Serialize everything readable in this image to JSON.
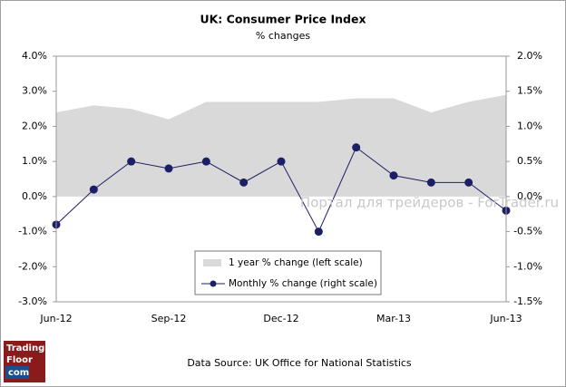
{
  "chart_data": {
    "type": "combo",
    "title": "UK: Consumer Price Index",
    "subtitle": "% changes",
    "categories": [
      "Jun-12",
      null,
      null,
      "Sep-12",
      null,
      null,
      "Dec-12",
      null,
      null,
      "Mar-13",
      null,
      null,
      "Jun-13"
    ],
    "series": [
      {
        "name": "1 year % change (left scale)",
        "kind": "area",
        "axis": "y",
        "color": "#d9d9d9",
        "values": [
          2.4,
          2.6,
          2.5,
          2.2,
          2.7,
          2.7,
          2.7,
          2.7,
          2.8,
          2.8,
          2.4,
          2.7,
          2.9
        ]
      },
      {
        "name": "Monthly % change (right scale)",
        "kind": "line",
        "axis": "y2",
        "color": "#1c1f66",
        "values": [
          -0.4,
          0.1,
          0.5,
          0.4,
          0.5,
          0.2,
          0.5,
          -0.5,
          0.7,
          0.3,
          0.2,
          0.2,
          -0.2
        ]
      }
    ],
    "ylim": [
      -3,
      4
    ],
    "yticks": [
      {
        "value": 4,
        "label": "4.0%"
      },
      {
        "value": 3,
        "label": "3.0%"
      },
      {
        "value": 2,
        "label": "2.0%"
      },
      {
        "value": 1,
        "label": "1.0%"
      },
      {
        "value": 0,
        "label": "0.0%"
      },
      {
        "value": -1,
        "label": "-1.0%"
      },
      {
        "value": -2,
        "label": "-2.0%"
      },
      {
        "value": -3,
        "label": "-3.0%"
      }
    ],
    "y2lim": [
      -1.5,
      2
    ],
    "y2ticks": [
      {
        "value": 2,
        "label": "2.0%"
      },
      {
        "value": 1.5,
        "label": "1.5%"
      },
      {
        "value": 1,
        "label": "1.0%"
      },
      {
        "value": 0.5,
        "label": "0.5%"
      },
      {
        "value": 0,
        "label": "0.0%"
      },
      {
        "value": -0.5,
        "label": "-0.5%"
      },
      {
        "value": -1,
        "label": "-1.0%"
      },
      {
        "value": -1.5,
        "label": "-1.5%"
      }
    ],
    "source": "Data Source: UK Office for National Statistics",
    "watermark": "Портал для трейдеров - ForTrader.ru",
    "logo": [
      "Trading",
      "Floor",
      "com"
    ]
  }
}
